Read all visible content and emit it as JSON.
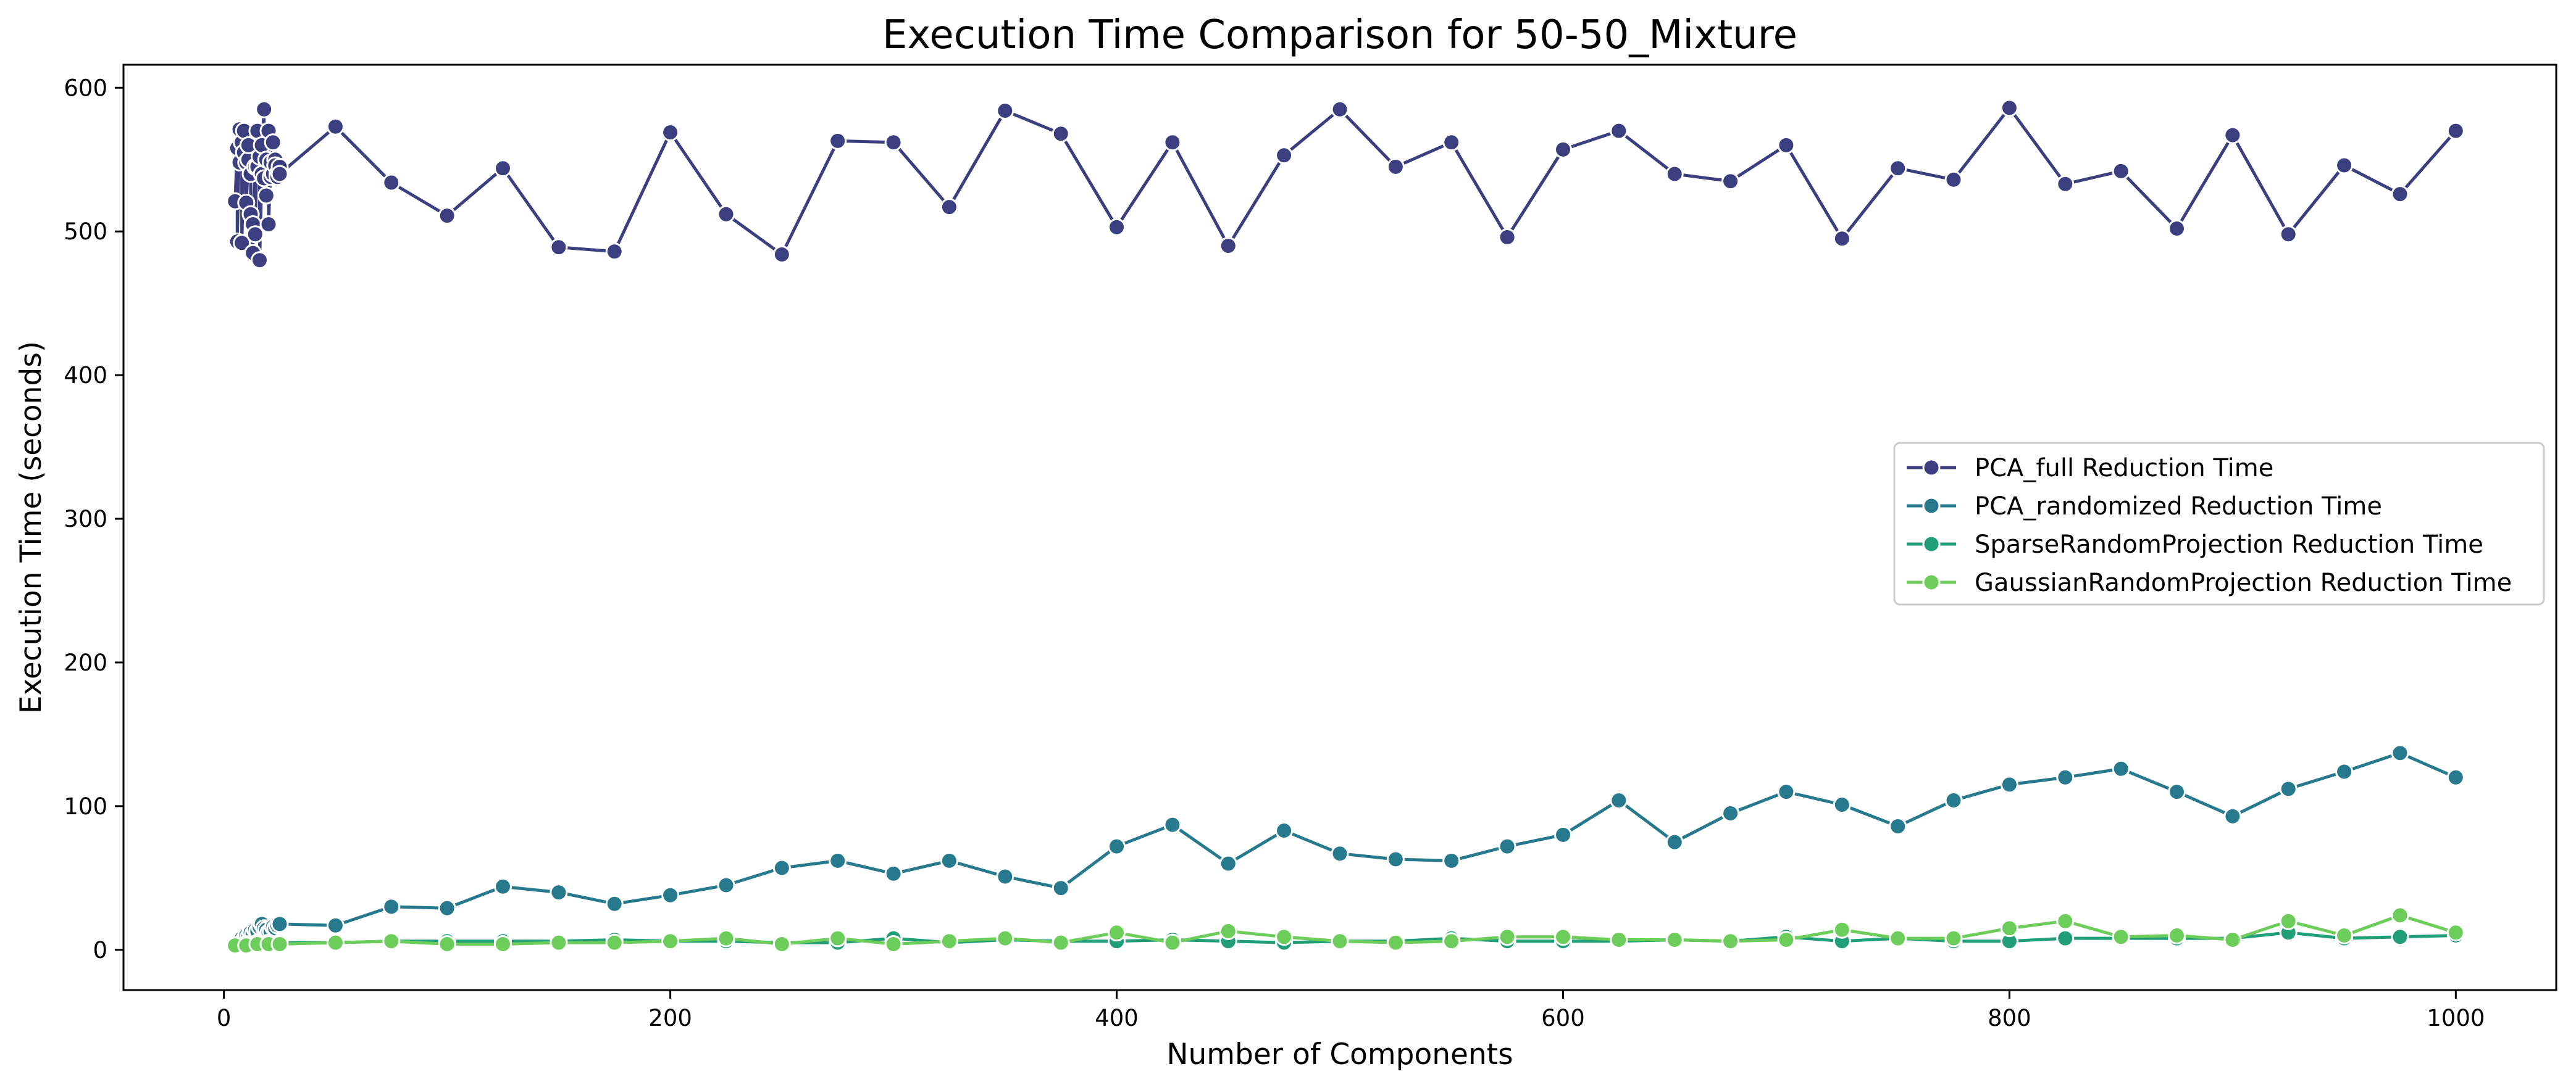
{
  "chart_data": {
    "type": "line",
    "title": "Execution Time Comparison for 50-50_Mixture",
    "xlabel": "Number of Components",
    "ylabel": "Execution Time (seconds)",
    "xlim": [
      -45,
      1045
    ],
    "ylim": [
      -28,
      616
    ],
    "xticks": [
      0,
      200,
      400,
      600,
      800,
      1000
    ],
    "yticks": [
      0,
      100,
      200,
      300,
      400,
      500,
      600
    ],
    "grid": false,
    "legend_position": "center-right",
    "series": [
      {
        "name": "PCA_full Reduction Time",
        "color": "#3b3f7f",
        "x": [
          5,
          6,
          6,
          7,
          7,
          8,
          8,
          9,
          9,
          10,
          10,
          11,
          11,
          12,
          12,
          13,
          13,
          14,
          14,
          15,
          15,
          16,
          16,
          17,
          17,
          18,
          18,
          19,
          19,
          20,
          20,
          21,
          21,
          22,
          22,
          23,
          23,
          24,
          24,
          25,
          25,
          50,
          75,
          100,
          125,
          150,
          175,
          200,
          225,
          250,
          275,
          300,
          325,
          350,
          375,
          400,
          425,
          450,
          475,
          500,
          525,
          550,
          575,
          600,
          625,
          650,
          675,
          700,
          725,
          750,
          775,
          800,
          825,
          850,
          875,
          900,
          925,
          950,
          975,
          1000
        ],
        "y": [
          521,
          558,
          493,
          571,
          548,
          562,
          492,
          555,
          570,
          548,
          520,
          550,
          560,
          540,
          512,
          485,
          505,
          545,
          498,
          570,
          545,
          552,
          480,
          540,
          560,
          585,
          537,
          550,
          525,
          570,
          505,
          548,
          538,
          562,
          540,
          550,
          546,
          540,
          538,
          545,
          540,
          573,
          534,
          511,
          544,
          489,
          486,
          569,
          512,
          484,
          563,
          562,
          517,
          584,
          568,
          503,
          562,
          490,
          553,
          585,
          545,
          562,
          496,
          557,
          570,
          540,
          535,
          560,
          495,
          544,
          536,
          586,
          533,
          542,
          502,
          567,
          498,
          546,
          526,
          570
        ]
      },
      {
        "name": "PCA_randomized Reduction Time",
        "color": "#277a8d",
        "x": [
          5,
          6,
          7,
          8,
          9,
          10,
          11,
          12,
          13,
          14,
          15,
          16,
          17,
          18,
          19,
          20,
          21,
          22,
          23,
          24,
          25,
          50,
          75,
          100,
          125,
          150,
          175,
          200,
          225,
          250,
          275,
          300,
          325,
          350,
          375,
          400,
          425,
          450,
          475,
          500,
          525,
          550,
          575,
          600,
          625,
          650,
          675,
          700,
          725,
          750,
          775,
          800,
          825,
          850,
          875,
          900,
          925,
          950,
          975,
          1000
        ],
        "y": [
          4,
          5,
          6,
          8,
          7,
          10,
          9,
          12,
          11,
          14,
          13,
          16,
          18,
          15,
          14,
          12,
          13,
          16,
          15,
          17,
          18,
          17,
          30,
          29,
          44,
          40,
          32,
          38,
          45,
          57,
          62,
          53,
          62,
          51,
          43,
          72,
          87,
          60,
          83,
          67,
          63,
          62,
          72,
          80,
          104,
          75,
          95,
          110,
          101,
          86,
          104,
          115,
          120,
          126,
          110,
          93,
          112,
          124,
          137,
          120
        ]
      },
      {
        "name": "SparseRandomProjection Reduction Time",
        "color": "#1f9e78",
        "x": [
          5,
          10,
          15,
          20,
          25,
          50,
          75,
          100,
          125,
          150,
          175,
          200,
          225,
          250,
          275,
          300,
          325,
          350,
          375,
          400,
          425,
          450,
          475,
          500,
          525,
          550,
          575,
          600,
          625,
          650,
          675,
          700,
          725,
          750,
          775,
          800,
          825,
          850,
          875,
          900,
          925,
          950,
          975,
          1000
        ],
        "y": [
          3,
          4,
          5,
          5,
          5,
          5,
          6,
          6,
          6,
          6,
          7,
          6,
          6,
          5,
          5,
          8,
          5,
          7,
          6,
          6,
          7,
          6,
          5,
          6,
          6,
          8,
          6,
          6,
          6,
          7,
          6,
          9,
          6,
          8,
          6,
          6,
          8,
          8,
          8,
          8,
          12,
          8,
          9,
          10
        ]
      },
      {
        "name": "GaussianRandomProjection Reduction Time",
        "color": "#6ccd5a",
        "x": [
          5,
          10,
          15,
          20,
          25,
          50,
          75,
          100,
          125,
          150,
          175,
          200,
          225,
          250,
          275,
          300,
          325,
          350,
          375,
          400,
          425,
          450,
          475,
          500,
          525,
          550,
          575,
          600,
          625,
          650,
          675,
          700,
          725,
          750,
          775,
          800,
          825,
          850,
          875,
          900,
          925,
          950,
          975,
          1000
        ],
        "y": [
          3,
          3,
          4,
          4,
          4,
          5,
          6,
          4,
          4,
          5,
          5,
          6,
          8,
          4,
          8,
          4,
          6,
          8,
          5,
          12,
          5,
          13,
          9,
          6,
          5,
          6,
          9,
          9,
          7,
          7,
          6,
          7,
          14,
          8,
          8,
          15,
          20,
          9,
          10,
          7,
          20,
          10,
          24,
          12
        ]
      }
    ]
  }
}
